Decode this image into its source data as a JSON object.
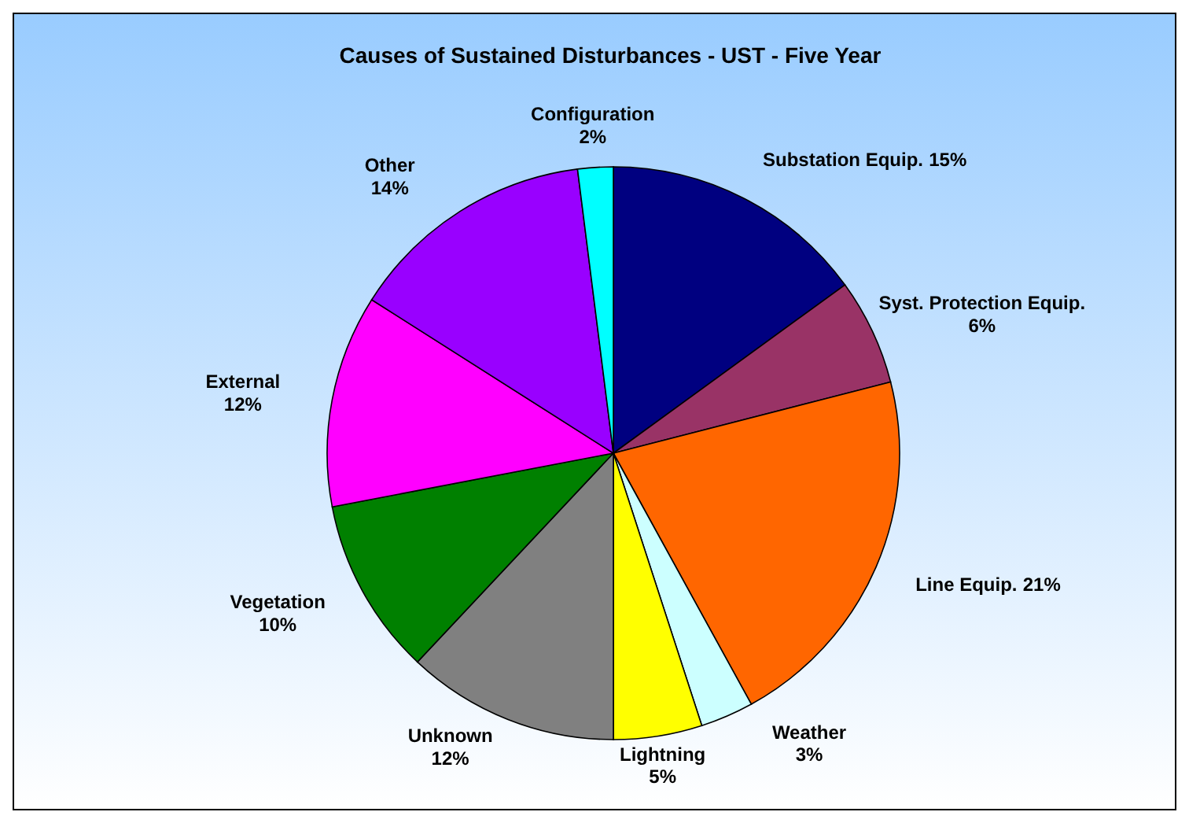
{
  "chart_data": {
    "type": "pie",
    "title": "Causes of Sustained Disturbances - UST - Five Year",
    "categories": [
      "Substation Equip.",
      "Syst. Protection Equip.",
      "Line Equip.",
      "Weather",
      "Lightning",
      "Unknown",
      "Vegetation",
      "External",
      "Other",
      "Configuration"
    ],
    "values": [
      15,
      6,
      21,
      3,
      5,
      12,
      10,
      12,
      14,
      2
    ],
    "colors": [
      "#000080",
      "#993366",
      "#ff6600",
      "#ccffff",
      "#ffff00",
      "#808080",
      "#008000",
      "#ff00ff",
      "#9900ff",
      "#00ffff"
    ],
    "value_labels": [
      "15%",
      "6%",
      "21%",
      "3%",
      "5%",
      "12%",
      "10%",
      "12%",
      "14%",
      "2%"
    ]
  }
}
